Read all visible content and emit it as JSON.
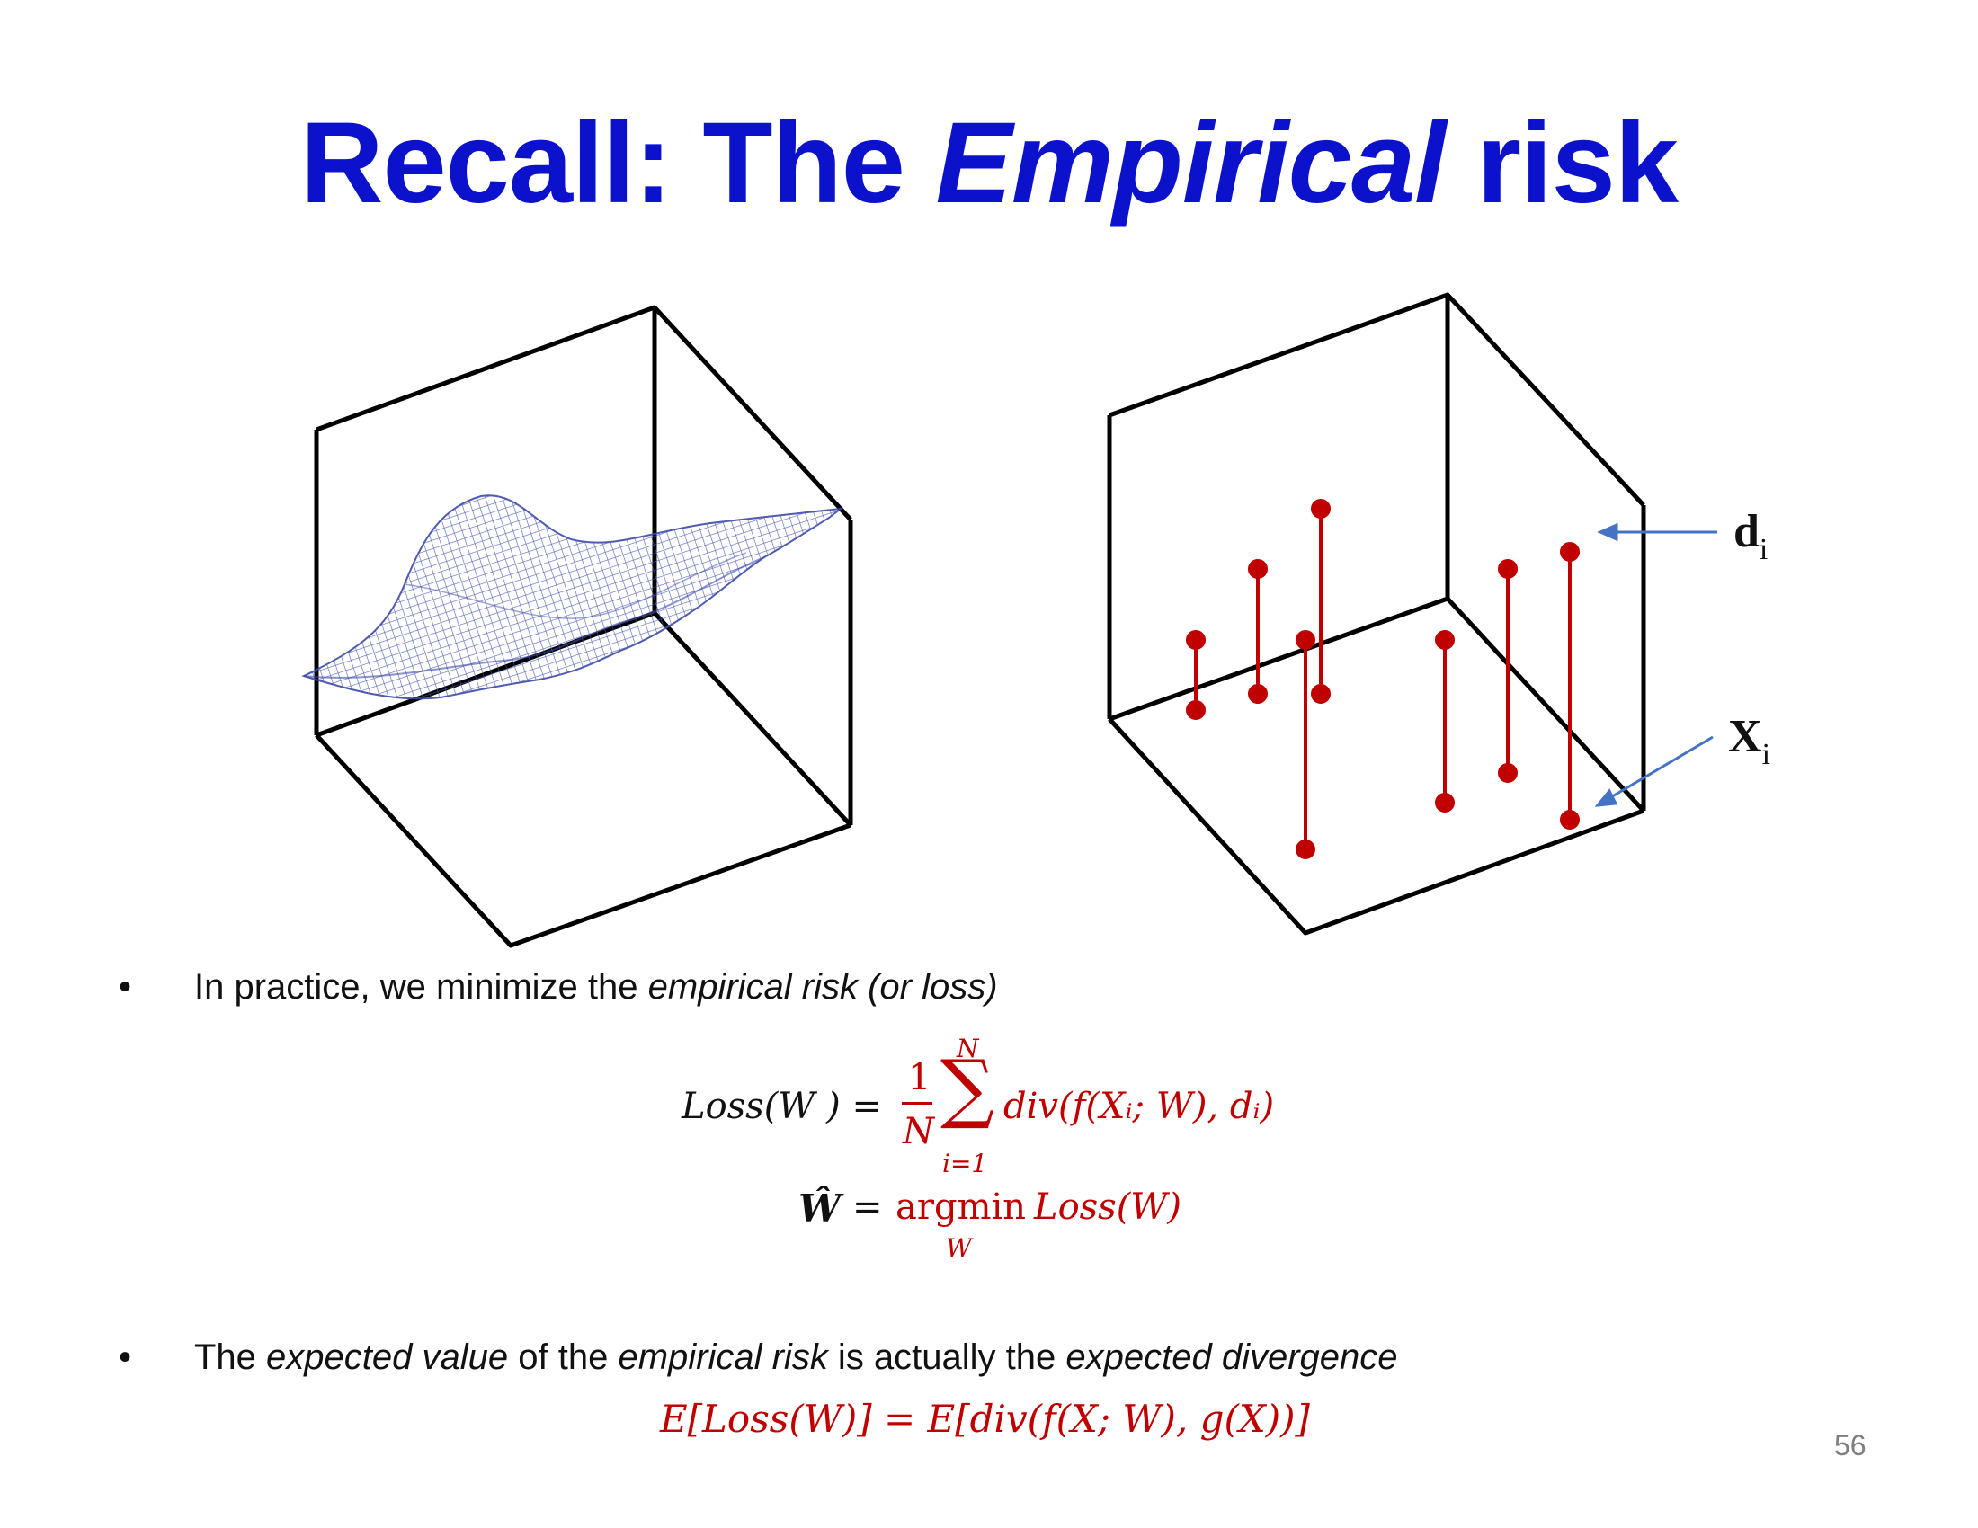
{
  "slide": {
    "title_part1": "Recall: The ",
    "title_emph": "Empirical",
    "title_part2": " risk",
    "page_number": "56"
  },
  "figure": {
    "label_d": "d",
    "label_d_sub": "i",
    "label_x": "X",
    "label_x_sub": "i"
  },
  "bullets": [
    {
      "prefix": "In practice, we minimize the ",
      "emph": "empirical risk (or loss)"
    },
    {
      "p1": "The ",
      "e1": "expected value",
      "p2": " of the ",
      "e2": "empirical risk",
      "p3": " is actually the ",
      "e3": "expected divergence"
    }
  ],
  "equations": {
    "loss_lhs": "Loss(W ) =",
    "frac_num": "1",
    "frac_den": "N",
    "sum_top": "N",
    "sum_sym": "∑",
    "sum_bottom": "i=1",
    "loss_rhs": "div(f(Xᵢ; W), dᵢ)",
    "what": "Ŵ",
    "what_eq": "=",
    "argmin": "argmin",
    "argmin_sub": "W",
    "argmin_rhs": "Loss(W)",
    "expect_eq": "E[Loss(W)] = E[div(f(X; W), g(X))]"
  }
}
